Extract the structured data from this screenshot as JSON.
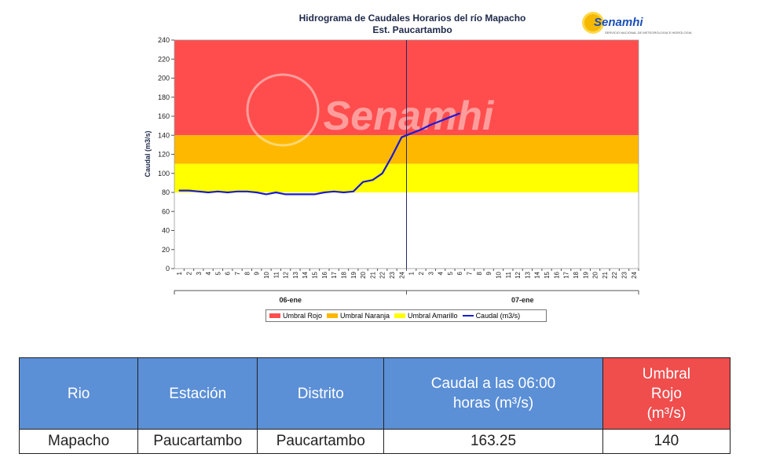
{
  "chart_data": {
    "type": "line",
    "title": "Hidrograma de Caudales Horarios del río Mapacho",
    "subtitle": "Est. Paucartambo",
    "ylabel": "Caudal  (m3/s)",
    "ylim": [
      0,
      240
    ],
    "yticks": [
      0,
      20,
      40,
      60,
      80,
      100,
      120,
      140,
      160,
      180,
      200,
      220,
      240
    ],
    "x_groups": [
      {
        "label": "06-ene",
        "ticks": [
          "1",
          "2",
          "3",
          "4",
          "5",
          "6",
          "7",
          "8",
          "9",
          "10",
          "11",
          "12",
          "13",
          "14",
          "15",
          "16",
          "17",
          "18",
          "19",
          "20",
          "21",
          "22",
          "23",
          "24"
        ]
      },
      {
        "label": "07-ene",
        "ticks": [
          "1",
          "2",
          "3",
          "4",
          "5",
          "6",
          "7",
          "8",
          "9",
          "10",
          "11",
          "12",
          "13",
          "14",
          "15",
          "16",
          "17",
          "18",
          "19",
          "20",
          "21",
          "22",
          "23",
          "24"
        ]
      }
    ],
    "thresholds": [
      {
        "name": "Umbral Rojo",
        "from": 140,
        "to": 240,
        "color": "#ff4d4d"
      },
      {
        "name": "Umbral Naranja",
        "from": 110,
        "to": 140,
        "color": "#ffb800"
      },
      {
        "name": "Umbral Amarillo",
        "from": 80,
        "to": 110,
        "color": "#ffff00"
      }
    ],
    "series": [
      {
        "name": "Caudal (m3/s)",
        "color": "#1a1ad6",
        "x": [
          1,
          2,
          3,
          4,
          5,
          6,
          7,
          8,
          9,
          10,
          11,
          12,
          13,
          14,
          15,
          16,
          17,
          18,
          19,
          20,
          21,
          22,
          23,
          24,
          25,
          26,
          27,
          28,
          29,
          30
        ],
        "values": [
          82,
          82,
          81,
          80,
          81,
          80,
          81,
          81,
          80,
          78,
          80,
          78,
          78,
          78,
          78,
          80,
          81,
          80,
          81,
          91,
          93,
          100,
          118,
          138,
          142,
          146,
          151,
          155,
          159,
          163
        ]
      }
    ],
    "current_marker_x": 24.5,
    "watermark": "Senamhi",
    "grid": false,
    "legend_position": "bottom"
  },
  "header": {
    "title": "Hidrograma de Caudales Horarios del río Mapacho",
    "subtitle": "Est. Paucartambo",
    "logo_text": "Senamhi",
    "logo_subtext": "SERVICIO NACIONAL DE METEOROLOGIA E HIDROLOGIA"
  },
  "legend": {
    "items": [
      "Umbral Rojo",
      "Umbral Naranja",
      "Umbral Amarillo",
      "Caudal (m3/s)"
    ]
  },
  "table": {
    "headers": [
      "Rio",
      "Estación",
      "Distrito",
      "Caudal a las 06:00 horas (m³/s)",
      "Umbral Rojo (m³/s)"
    ],
    "row": [
      "Mapacho",
      "Paucartambo",
      "Paucartambo",
      "163.25",
      "140"
    ]
  }
}
